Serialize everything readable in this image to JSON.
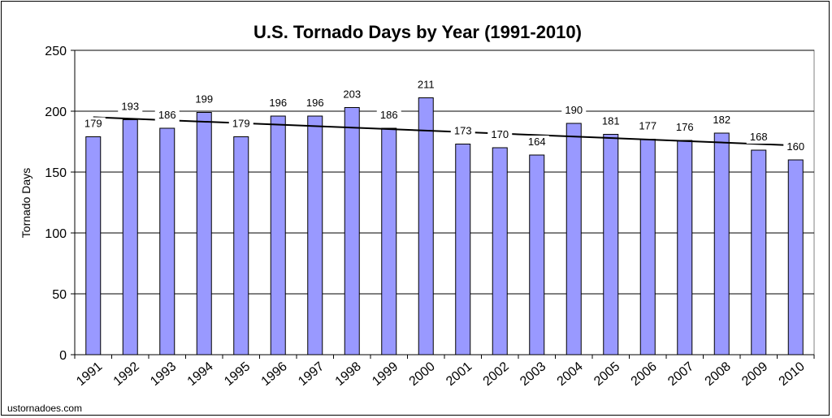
{
  "chart_data": {
    "type": "bar",
    "title": "U.S. Tornado Days by Year (1991-2010)",
    "xlabel": "",
    "ylabel": "Tornado Days",
    "ylim": [
      0,
      250
    ],
    "yticks": [
      0,
      50,
      100,
      150,
      200,
      250
    ],
    "categories": [
      "1991",
      "1992",
      "1993",
      "1994",
      "1995",
      "1996",
      "1997",
      "1998",
      "1999",
      "2000",
      "2001",
      "2002",
      "2003",
      "2004",
      "2005",
      "2006",
      "2007",
      "2008",
      "2009",
      "2010"
    ],
    "values": [
      179,
      193,
      186,
      199,
      179,
      196,
      196,
      203,
      186,
      211,
      173,
      170,
      164,
      190,
      181,
      177,
      176,
      182,
      168,
      160
    ],
    "trendline": {
      "type": "linear",
      "color": "#000000"
    },
    "grid": {
      "horizontal": true,
      "vertical": false
    },
    "bar_color": "#9999ff",
    "source_text": "ustornadoes.com"
  }
}
